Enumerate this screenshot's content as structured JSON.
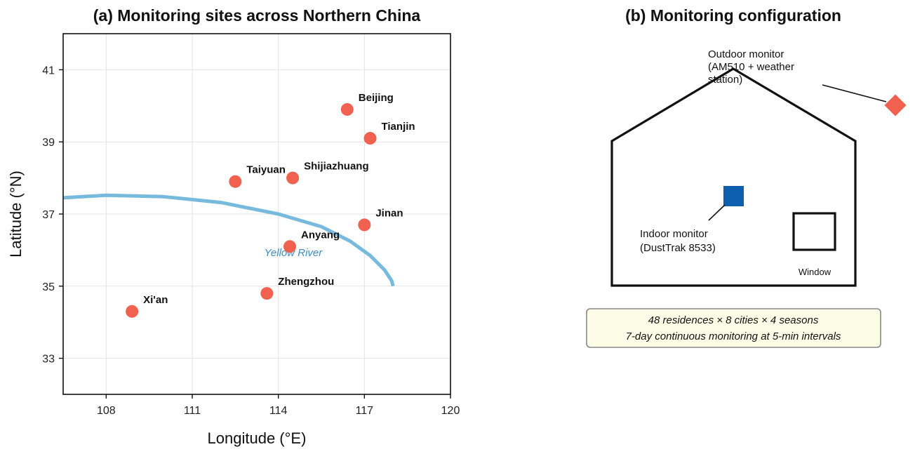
{
  "chart_data": [
    {
      "type": "scatter",
      "title": "(a) Monitoring sites across Northern China",
      "xlabel": "Longitude (°E)",
      "ylabel": "Latitude (°N)",
      "xlim": [
        106.5,
        120
      ],
      "ylim": [
        32,
        42
      ],
      "xticks": [
        108,
        111,
        114,
        117,
        120
      ],
      "yticks": [
        33,
        35,
        37,
        39,
        41
      ],
      "grid": true,
      "marker_color": "#F0614F",
      "points": [
        {
          "label": "Beijing",
          "x": 116.4,
          "y": 39.9
        },
        {
          "label": "Tianjin",
          "x": 117.2,
          "y": 39.1
        },
        {
          "label": "Shijiazhuang",
          "x": 114.5,
          "y": 38.0
        },
        {
          "label": "Taiyuan",
          "x": 112.5,
          "y": 37.9
        },
        {
          "label": "Jinan",
          "x": 117.0,
          "y": 36.7
        },
        {
          "label": "Anyang",
          "x": 114.4,
          "y": 36.1
        },
        {
          "label": "Zhengzhou",
          "x": 113.6,
          "y": 34.8
        },
        {
          "label": "Xi'an",
          "x": 108.9,
          "y": 34.3
        }
      ],
      "river": {
        "label": "Yellow River",
        "color": "#78BADD",
        "label_color": "#3A8CC4",
        "x": [
          106.5,
          108,
          110,
          112,
          114,
          115.5,
          116.5,
          117.2,
          117.7,
          117.95,
          118.0
        ],
        "y": [
          37.45,
          37.52,
          37.48,
          37.32,
          37.0,
          36.65,
          36.25,
          35.85,
          35.45,
          35.15,
          35.0
        ]
      }
    }
  ],
  "panel_b": {
    "title": "(b) Monitoring configuration",
    "outdoor_label": "Outdoor monitor\n(AM510 + weather\nstation)",
    "outdoor_color": "#F0614F",
    "indoor_label": "Indoor monitor\n(DustTrak 8533)",
    "indoor_color": "#0F5FAF",
    "window_label": "Window",
    "summary_lines": [
      "48 residences × 8 cities × 4 seasons",
      "7-day continuous monitoring at 5-min intervals"
    ],
    "summary_bg": "#FDFCE6"
  }
}
